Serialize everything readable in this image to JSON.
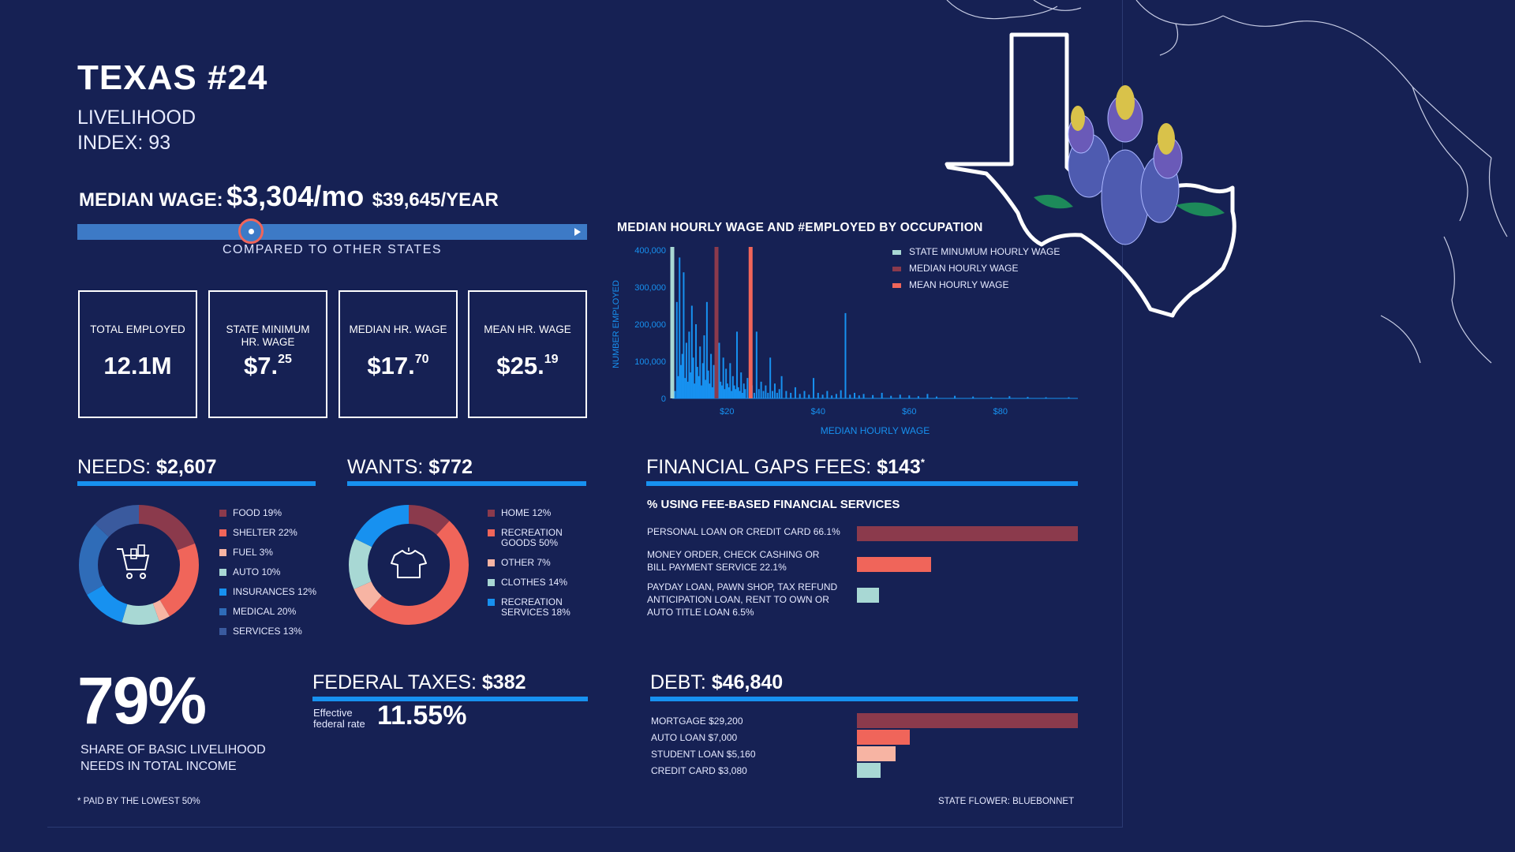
{
  "header": {
    "title": "TEXAS #24",
    "subtitle_line1": "LIVELIHOOD",
    "subtitle_line2": "INDEX: 93"
  },
  "median_wage": {
    "label": "MEDIAN WAGE:",
    "monthly": "$3,304/mo",
    "yearly": "$39,645/YEAR",
    "comparison_label": "COMPARED TO OTHER STATES",
    "rank_position_fraction": 0.34
  },
  "stats": [
    {
      "label": "TOTAL EMPLOYED",
      "value": "12.1M",
      "sup": ""
    },
    {
      "label": "STATE MINIMUM HR. WAGE",
      "value": "$7.",
      "sup": "25"
    },
    {
      "label": "MEDIAN HR. WAGE",
      "value": "$17.",
      "sup": "70"
    },
    {
      "label": "MEAN HR. WAGE",
      "value": "$25.",
      "sup": "19"
    }
  ],
  "chart_data": [
    {
      "type": "bar",
      "title": "MEDIAN HOURLY WAGE AND #EMPLOYED BY OCCUPATION",
      "xlabel": "MEDIAN HOURLY WAGE",
      "ylabel": "NUMBER EMPLOYED",
      "xlim": [
        8,
        97
      ],
      "ylim": [
        0,
        400000
      ],
      "x_ticks": [
        {
          "value": 20,
          "label": "$20"
        },
        {
          "value": 40,
          "label": "$40"
        },
        {
          "value": 60,
          "label": "$60"
        },
        {
          "value": 80,
          "label": "$80"
        }
      ],
      "y_ticks": [
        {
          "value": 0,
          "label": "0"
        },
        {
          "value": 100000,
          "label": "100,000"
        },
        {
          "value": 200000,
          "label": "200,000"
        },
        {
          "value": 300000,
          "label": "300,000"
        },
        {
          "value": 400000,
          "label": "400,000"
        }
      ],
      "legend_position": "top-right",
      "reference_lines": [
        {
          "name": "STATE MINUMUM HOURLY WAGE",
          "x": 7.25,
          "color": "#a8d8d4"
        },
        {
          "name": "MEDIAN HOURLY WAGE",
          "x": 17.7,
          "color": "#8b3a4c"
        },
        {
          "name": "MEAN HOURLY WAGE",
          "x": 25.19,
          "color": "#f0655a"
        }
      ],
      "bar_color": "#1791f0",
      "x": [
        8.1,
        8.6,
        9.0,
        9.3,
        9.6,
        9.9,
        10.2,
        10.5,
        10.8,
        11.1,
        11.4,
        11.7,
        12.0,
        12.3,
        12.6,
        12.9,
        13.2,
        13.5,
        13.8,
        14.1,
        14.4,
        14.7,
        15.0,
        15.3,
        15.6,
        15.9,
        16.2,
        16.5,
        16.8,
        17.1,
        17.4,
        17.7,
        18.0,
        18.3,
        18.6,
        18.9,
        19.2,
        19.5,
        19.8,
        20.1,
        20.4,
        20.7,
        21.0,
        21.3,
        21.6,
        21.9,
        22.2,
        22.5,
        22.8,
        23.1,
        23.4,
        23.7,
        24.0,
        24.5,
        25.0,
        25.5,
        26.0,
        26.5,
        27.0,
        27.5,
        28.0,
        28.5,
        29.0,
        29.5,
        30.0,
        30.5,
        31.0,
        31.5,
        32.0,
        33.0,
        34.0,
        35.0,
        36.0,
        37.0,
        38.0,
        39.0,
        40.0,
        41.0,
        42.0,
        43.0,
        44.0,
        45.0,
        46.0,
        47.0,
        48.0,
        49.0,
        50.0,
        52.0,
        54.0,
        56.0,
        58.0,
        60.0,
        62.0,
        64.0,
        66.0,
        70.0,
        74.0,
        78.0,
        82.0,
        86.0,
        90.0,
        95.0
      ],
      "values": [
        30000,
        20000,
        260000,
        60000,
        380000,
        90000,
        120000,
        340000,
        55000,
        150000,
        45000,
        180000,
        70000,
        250000,
        110000,
        40000,
        200000,
        85000,
        60000,
        140000,
        35000,
        95000,
        170000,
        50000,
        260000,
        75000,
        40000,
        120000,
        30000,
        90000,
        55000,
        65000,
        20000,
        150000,
        45000,
        35000,
        110000,
        25000,
        80000,
        40000,
        30000,
        95000,
        20000,
        60000,
        35000,
        25000,
        180000,
        30000,
        20000,
        70000,
        15000,
        40000,
        25000,
        55000,
        20000,
        35000,
        15000,
        180000,
        25000,
        45000,
        20000,
        35000,
        15000,
        110000,
        20000,
        40000,
        15000,
        25000,
        60000,
        20000,
        15000,
        30000,
        12000,
        20000,
        10000,
        55000,
        15000,
        10000,
        20000,
        8000,
        12000,
        22000,
        230000,
        10000,
        15000,
        8000,
        12000,
        9000,
        15000,
        7000,
        10000,
        8000,
        6000,
        12000,
        5000,
        7000,
        5000,
        4000,
        6000,
        4000,
        3000,
        3000
      ]
    },
    {
      "type": "pie",
      "title": "NEEDS",
      "categories": [
        "FOOD 19%",
        "SHELTER 22%",
        "FUEL 3%",
        "AUTO 10%",
        "INSURANCES 12%",
        "MEDICAL 20%",
        "SERVICES 13%"
      ],
      "values": [
        19,
        22,
        3,
        10,
        12,
        20,
        13
      ],
      "colors": [
        "#8b3a4c",
        "#f0655a",
        "#f7b4a3",
        "#a8d8d4",
        "#1791f0",
        "#2f6cb8",
        "#3a5a9e"
      ]
    },
    {
      "type": "pie",
      "title": "WANTS",
      "categories": [
        "HOME 12%",
        "RECREATION GOODS 50%",
        "OTHER 7%",
        "CLOTHES 14%",
        "RECREATION SERVICES 18%"
      ],
      "values": [
        12,
        50,
        7,
        14,
        18
      ],
      "colors": [
        "#8b3a4c",
        "#f0655a",
        "#f7b4a3",
        "#a8d8d4",
        "#1791f0"
      ]
    },
    {
      "type": "bar",
      "orientation": "horizontal",
      "title": "% USING FEE-BASED FINANCIAL SERVICES",
      "categories": [
        "PERSONAL LOAN OR CREDIT CARD 66.1%",
        "MONEY ORDER, CHECK CASHING OR BILL PAYMENT SERVICE 22.1%",
        "PAYDAY LOAN, PAWN SHOP, TAX REFUND ANTICIPATION LOAN, RENT TO OWN OR AUTO TITLE LOAN 6.5%"
      ],
      "values": [
        66.1,
        22.1,
        6.5
      ],
      "colors": [
        "#8b3a4c",
        "#f0655a",
        "#a8d8d4"
      ]
    },
    {
      "type": "bar",
      "orientation": "horizontal",
      "title": "DEBT",
      "categories": [
        "MORTGAGE $29,200",
        "AUTO LOAN $7,000",
        "STUDENT LOAN $5,160",
        "CREDIT CARD $3,080"
      ],
      "values": [
        29200,
        7000,
        5160,
        3080
      ],
      "colors": [
        "#8b3a4c",
        "#f0655a",
        "#f7b4a3",
        "#a8d8d4"
      ]
    }
  ],
  "needs": {
    "label": "NEEDS:",
    "amount": "$2,607",
    "icon": "shopping-cart-icon"
  },
  "wants": {
    "label": "WANTS:",
    "amount": "$772",
    "icon": "t-shirt-icon"
  },
  "fees": {
    "label": "FINANCIAL GAPS FEES:",
    "amount": "$143",
    "mark": "*"
  },
  "share": {
    "value": "79%",
    "line1": "SHARE OF BASIC LIVELIHOOD",
    "line2": "NEEDS IN TOTAL INCOME"
  },
  "taxes": {
    "label": "FEDERAL TAXES:",
    "amount": "$382",
    "rate_label_1": "Effective",
    "rate_label_2": "federal rate",
    "rate": "11.55%"
  },
  "debt": {
    "label": "DEBT:",
    "amount": "$46,840"
  },
  "footer": {
    "footnote": "* PAID BY THE LOWEST 50%",
    "flower": "STATE FLOWER: BLUEBONNET"
  },
  "colors": {
    "background": "#162154",
    "accent_blue": "#1791f0",
    "maroon": "#8b3a4c",
    "coral": "#f0655a",
    "peach": "#f7b4a3",
    "mint": "#a8d8d4"
  }
}
